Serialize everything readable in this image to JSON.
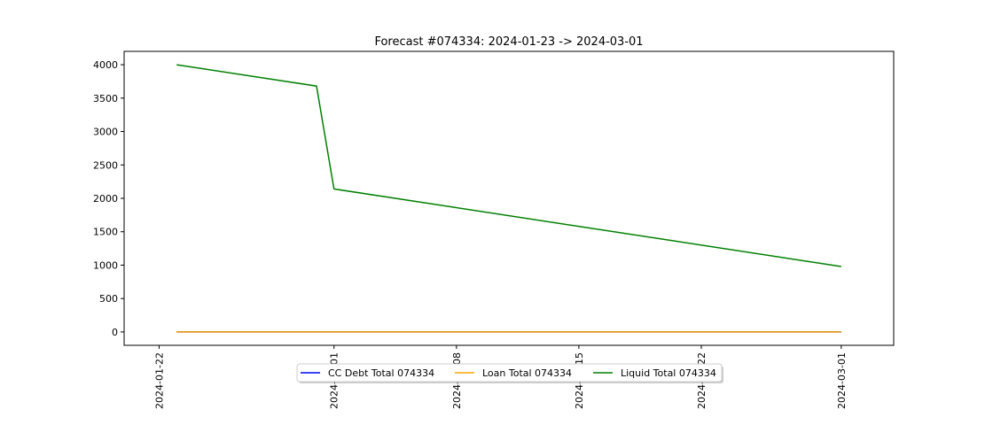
{
  "chart_data": {
    "type": "line",
    "title": "Forecast #074334: 2024-01-23 -> 2024-03-01",
    "xlabel": "",
    "ylabel": "",
    "x_axis": {
      "type": "date",
      "range": [
        "2024-01-20",
        "2024-03-04"
      ],
      "ticks": [
        "2024-01-22",
        "2024-02-01",
        "2024-02-08",
        "2024-02-15",
        "2024-02-22",
        "2024-03-01"
      ]
    },
    "y_axis": {
      "range": [
        -200,
        4200
      ],
      "ticks": [
        0,
        500,
        1000,
        1500,
        2000,
        2500,
        3000,
        3500,
        4000
      ]
    },
    "grid": false,
    "legend": {
      "placement": "bottom-center",
      "columns": 3
    },
    "series": [
      {
        "name": "CC Debt Total 074334",
        "color": "#0000ff",
        "points": [
          [
            "2024-01-23",
            0
          ],
          [
            "2024-03-01",
            0
          ]
        ]
      },
      {
        "name": "Loan Total 074334",
        "color": "#ffa500",
        "points": [
          [
            "2024-01-23",
            0
          ],
          [
            "2024-03-01",
            0
          ]
        ]
      },
      {
        "name": "Liquid Total 074334",
        "color": "#008000",
        "points": [
          [
            "2024-01-23",
            4000
          ],
          [
            "2024-01-31",
            3680
          ],
          [
            "2024-02-01",
            2140
          ],
          [
            "2024-03-01",
            980
          ]
        ]
      }
    ]
  }
}
